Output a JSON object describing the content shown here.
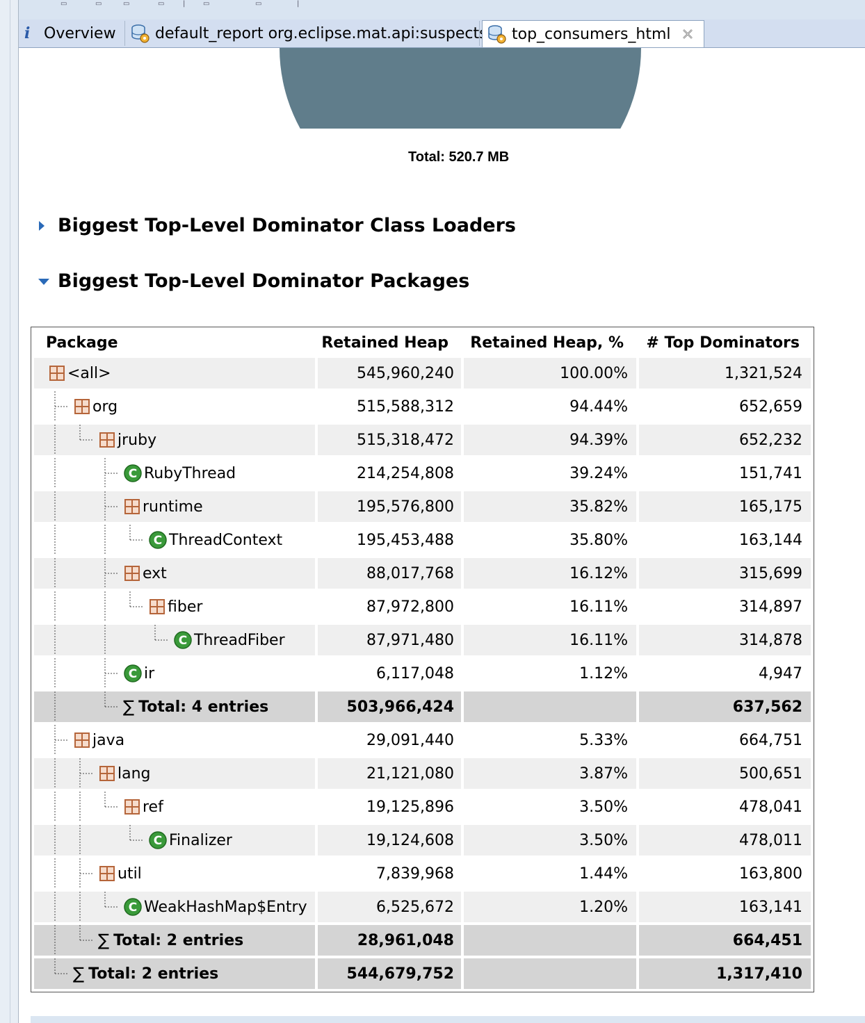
{
  "tabs": [
    {
      "label": "Overview",
      "icon": "info-icon"
    },
    {
      "label": "default_report  org.eclipse.mat.api:suspects",
      "icon": "report-icon"
    },
    {
      "label": "top_consumers_html",
      "icon": "report-icon",
      "active": true
    }
  ],
  "pie": {
    "total_label": "Total: 520.7 MB",
    "color": "#607d8b"
  },
  "sections": [
    {
      "title": "Biggest Top-Level Dominator Class Loaders",
      "expanded": false
    },
    {
      "title": "Biggest Top-Level Dominator Packages",
      "expanded": true
    }
  ],
  "table": {
    "headers": [
      "Package",
      "Retained Heap",
      "Retained Heap, %",
      "# Top Dominators"
    ],
    "rows": [
      {
        "name": "<all>",
        "kind": "package",
        "depth": 0,
        "heap": "545,960,240",
        "pct": "100.00%",
        "doms": "1,321,524"
      },
      {
        "name": "org",
        "kind": "package",
        "depth": 1,
        "heap": "515,588,312",
        "pct": "94.44%",
        "doms": "652,659"
      },
      {
        "name": "jruby",
        "kind": "package",
        "depth": 2,
        "heap": "515,318,472",
        "pct": "94.39%",
        "doms": "652,232"
      },
      {
        "name": "RubyThread",
        "kind": "class",
        "depth": 3,
        "heap": "214,254,808",
        "pct": "39.24%",
        "doms": "151,741"
      },
      {
        "name": "runtime",
        "kind": "package",
        "depth": 3,
        "heap": "195,576,800",
        "pct": "35.82%",
        "doms": "165,175"
      },
      {
        "name": "ThreadContext",
        "kind": "class",
        "depth": 4,
        "heap": "195,453,488",
        "pct": "35.80%",
        "doms": "163,144"
      },
      {
        "name": "ext",
        "kind": "package",
        "depth": 3,
        "heap": "88,017,768",
        "pct": "16.12%",
        "doms": "315,699"
      },
      {
        "name": "fiber",
        "kind": "package",
        "depth": 4,
        "heap": "87,972,800",
        "pct": "16.11%",
        "doms": "314,897"
      },
      {
        "name": "ThreadFiber",
        "kind": "class",
        "depth": 5,
        "heap": "87,971,480",
        "pct": "16.11%",
        "doms": "314,878"
      },
      {
        "name": "ir",
        "kind": "class",
        "depth": 3,
        "heap": "6,117,048",
        "pct": "1.12%",
        "doms": "4,947"
      },
      {
        "name": "Total: 4 entries",
        "kind": "total",
        "depth": 3,
        "heap": "503,966,424",
        "pct": "",
        "doms": "637,562"
      },
      {
        "name": "java",
        "kind": "package",
        "depth": 1,
        "heap": "29,091,440",
        "pct": "5.33%",
        "doms": "664,751"
      },
      {
        "name": "lang",
        "kind": "package",
        "depth": 2,
        "heap": "21,121,080",
        "pct": "3.87%",
        "doms": "500,651"
      },
      {
        "name": "ref",
        "kind": "package",
        "depth": 3,
        "heap": "19,125,896",
        "pct": "3.50%",
        "doms": "478,041"
      },
      {
        "name": "Finalizer",
        "kind": "class",
        "depth": 4,
        "heap": "19,124,608",
        "pct": "3.50%",
        "doms": "478,011"
      },
      {
        "name": "util",
        "kind": "package",
        "depth": 2,
        "heap": "7,839,968",
        "pct": "1.44%",
        "doms": "163,800"
      },
      {
        "name": "WeakHashMap$Entry",
        "kind": "class",
        "depth": 3,
        "heap": "6,525,672",
        "pct": "1.20%",
        "doms": "163,141"
      },
      {
        "name": "Total: 2 entries",
        "kind": "total",
        "depth": 2,
        "heap": "28,961,048",
        "pct": "",
        "doms": "664,451"
      },
      {
        "name": "Total: 2 entries",
        "kind": "total",
        "depth": 1,
        "heap": "544,679,752",
        "pct": "",
        "doms": "1,317,410"
      }
    ]
  },
  "colors": {
    "package_icon": "#b5653a",
    "class_icon": "#3a9a3a",
    "total_row": "#d4d4d4",
    "alt_row": "#efefef"
  }
}
